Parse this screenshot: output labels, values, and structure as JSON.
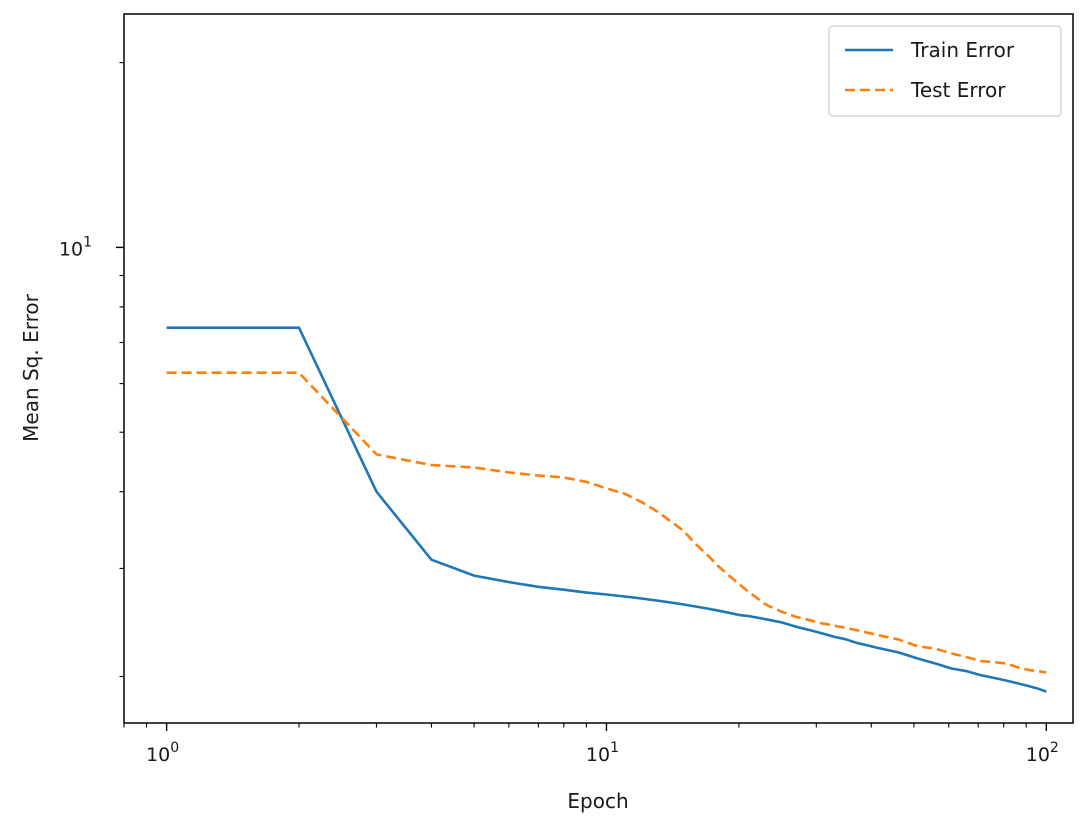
{
  "chart_data": {
    "type": "line",
    "title": "",
    "xlabel": "Epoch",
    "ylabel": "Mean Sq. Error",
    "xscale": "log",
    "yscale": "log",
    "xlim": [
      0.8,
      115
    ],
    "ylim": [
      1.68,
      24.0
    ],
    "grid": false,
    "legend_position": "top-right",
    "x_ticks": [
      {
        "value": 1,
        "label": "10",
        "exp": "0"
      },
      {
        "value": 10,
        "label": "10",
        "exp": "1"
      },
      {
        "value": 100,
        "label": "10",
        "exp": "2"
      }
    ],
    "y_ticks": [
      {
        "value": 10,
        "label": "10",
        "exp": "1"
      }
    ],
    "series": [
      {
        "name": "Train Error",
        "color": "#1f77b4",
        "style": "solid",
        "x": [
          0,
          1,
          2,
          3,
          4,
          5,
          6,
          7,
          8,
          9,
          10,
          11,
          12,
          13,
          14,
          15,
          16,
          17,
          18,
          19,
          20,
          22,
          24,
          26,
          28,
          30,
          32,
          34,
          36,
          38,
          40,
          45,
          50,
          55,
          60,
          65,
          70,
          75,
          80,
          85,
          90,
          95,
          99
        ],
        "y": [
          7.4,
          7.4,
          4.0,
          3.1,
          2.92,
          2.85,
          2.8,
          2.77,
          2.74,
          2.72,
          2.7,
          2.68,
          2.66,
          2.64,
          2.62,
          2.6,
          2.58,
          2.56,
          2.54,
          2.52,
          2.51,
          2.48,
          2.45,
          2.41,
          2.38,
          2.35,
          2.32,
          2.3,
          2.27,
          2.25,
          2.23,
          2.19,
          2.14,
          2.1,
          2.06,
          2.04,
          2.01,
          1.99,
          1.97,
          1.95,
          1.93,
          1.91,
          1.89
        ]
      },
      {
        "name": "Test Error",
        "color": "#ff7f0e",
        "style": "dashed",
        "x": [
          0,
          1,
          2,
          3,
          4,
          5,
          6,
          7,
          8,
          9,
          10,
          11,
          12,
          13,
          14,
          15,
          16,
          17,
          18,
          19,
          20,
          22,
          24,
          26,
          28,
          30,
          32,
          34,
          36,
          38,
          40,
          45,
          50,
          55,
          60,
          65,
          70,
          75,
          80,
          85,
          90,
          95,
          99
        ],
        "y": [
          6.25,
          6.25,
          4.6,
          4.42,
          4.38,
          4.3,
          4.25,
          4.22,
          4.15,
          4.05,
          3.97,
          3.85,
          3.72,
          3.58,
          3.45,
          3.28,
          3.15,
          3.02,
          2.92,
          2.83,
          2.75,
          2.62,
          2.55,
          2.5,
          2.47,
          2.44,
          2.42,
          2.4,
          2.38,
          2.36,
          2.34,
          2.3,
          2.24,
          2.22,
          2.18,
          2.15,
          2.12,
          2.11,
          2.1,
          2.07,
          2.05,
          2.04,
          2.03
        ]
      }
    ]
  }
}
